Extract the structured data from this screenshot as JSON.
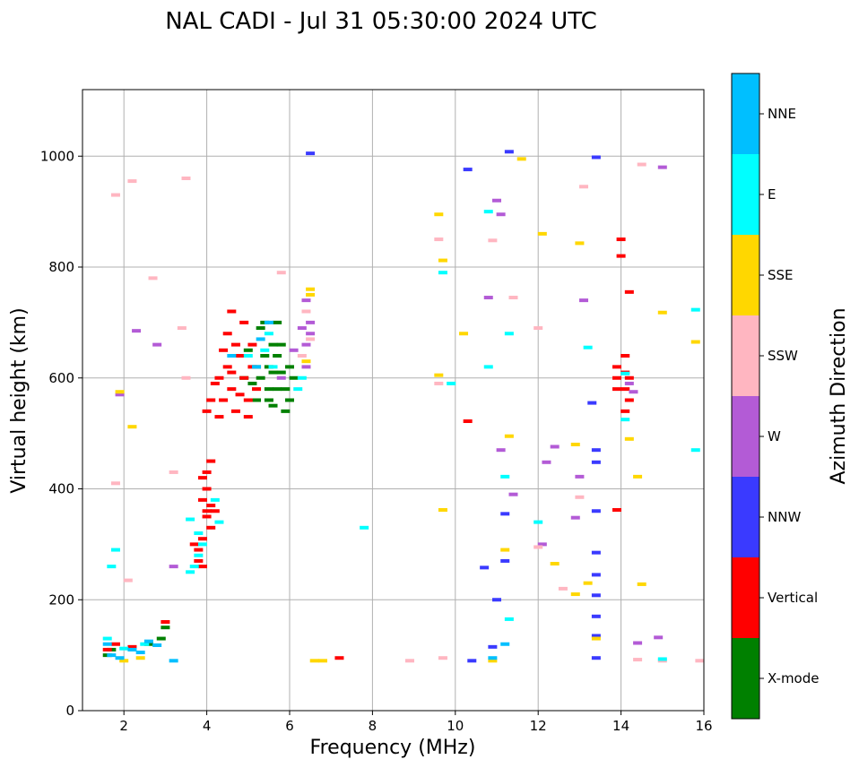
{
  "chart_data": {
    "type": "scatter",
    "title": "NAL CADI - Jul 31 05:30:00 2024 UTC",
    "xlabel": "Frequency (MHz)",
    "ylabel": "Virtual height (km)",
    "xlim": [
      1,
      16
    ],
    "ylim": [
      0,
      1120
    ],
    "xticks": [
      2,
      4,
      6,
      8,
      10,
      12,
      14,
      16
    ],
    "yticks": [
      0,
      200,
      400,
      600,
      800,
      1000
    ],
    "grid": true,
    "colorbar": {
      "label": "Azimuth Direction",
      "categories": [
        "X-mode",
        "Vertical",
        "NNW",
        "W",
        "SSW",
        "SSE",
        "E",
        "NNE"
      ],
      "colors": [
        "#008000",
        "#ff0000",
        "#3a3aff",
        "#b35bd6",
        "#ffb6c1",
        "#ffd700",
        "#00ffff",
        "#00bfff"
      ]
    },
    "series": [
      {
        "name": "X-mode",
        "points": [
          [
            5.4,
            640
          ],
          [
            5.5,
            620
          ],
          [
            5.3,
            600
          ],
          [
            5.6,
            660
          ],
          [
            5.7,
            700
          ],
          [
            5.2,
            560
          ],
          [
            5.8,
            610
          ],
          [
            5.9,
            580
          ],
          [
            6.0,
            620
          ],
          [
            5.1,
            590
          ],
          [
            5.5,
            580
          ],
          [
            5.0,
            650
          ],
          [
            5.4,
            700
          ],
          [
            5.6,
            550
          ],
          [
            5.9,
            540
          ],
          [
            6.1,
            600
          ],
          [
            5.7,
            640
          ],
          [
            5.3,
            690
          ],
          [
            5.2,
            620
          ],
          [
            5.8,
            660
          ],
          [
            6.0,
            560
          ],
          [
            5.6,
            610
          ],
          [
            4.9,
            600
          ],
          [
            5.7,
            580
          ],
          [
            5.5,
            560
          ],
          [
            1.6,
            100
          ],
          [
            1.7,
            110
          ],
          [
            2.9,
            130
          ],
          [
            2.6,
            120
          ],
          [
            3.0,
            150
          ]
        ]
      },
      {
        "name": "Vertical",
        "points": [
          [
            4.3,
            600
          ],
          [
            4.4,
            560
          ],
          [
            4.5,
            620
          ],
          [
            4.6,
            580
          ],
          [
            4.7,
            540
          ],
          [
            4.8,
            640
          ],
          [
            4.9,
            600
          ],
          [
            5.0,
            560
          ],
          [
            5.1,
            620
          ],
          [
            4.2,
            590
          ],
          [
            4.4,
            650
          ],
          [
            4.6,
            610
          ],
          [
            4.8,
            570
          ],
          [
            5.0,
            530
          ],
          [
            5.2,
            580
          ],
          [
            4.3,
            530
          ],
          [
            4.5,
            680
          ],
          [
            4.7,
            660
          ],
          [
            4.9,
            700
          ],
          [
            5.1,
            660
          ],
          [
            4.0,
            540
          ],
          [
            4.1,
            560
          ],
          [
            4.6,
            720
          ],
          [
            3.8,
            290
          ],
          [
            3.9,
            310
          ],
          [
            4.0,
            350
          ],
          [
            4.0,
            400
          ],
          [
            3.9,
            380
          ],
          [
            4.1,
            330
          ],
          [
            4.0,
            430
          ],
          [
            4.1,
            450
          ],
          [
            3.8,
            270
          ],
          [
            3.9,
            260
          ],
          [
            4.2,
            360
          ],
          [
            3.9,
            420
          ],
          [
            4.0,
            360
          ],
          [
            3.7,
            300
          ],
          [
            4.1,
            370
          ],
          [
            14.1,
            640
          ],
          [
            14.1,
            610
          ],
          [
            14.2,
            600
          ],
          [
            14.1,
            580
          ],
          [
            14.2,
            560
          ],
          [
            14.1,
            540
          ],
          [
            13.9,
            620
          ],
          [
            13.9,
            600
          ],
          [
            13.9,
            580
          ],
          [
            14.0,
            850
          ],
          [
            14.0,
            820
          ],
          [
            14.2,
            755
          ],
          [
            13.9,
            362
          ],
          [
            1.6,
            110
          ],
          [
            1.8,
            120
          ],
          [
            2.2,
            115
          ],
          [
            3.0,
            160
          ],
          [
            10.3,
            522
          ],
          [
            7.2,
            95
          ]
        ]
      },
      {
        "name": "NNW",
        "points": [
          [
            13.4,
            998
          ],
          [
            13.4,
            448
          ],
          [
            13.3,
            555
          ],
          [
            13.4,
            470
          ],
          [
            13.4,
            360
          ],
          [
            13.4,
            285
          ],
          [
            13.4,
            245
          ],
          [
            13.4,
            208
          ],
          [
            13.4,
            170
          ],
          [
            13.4,
            135
          ],
          [
            13.4,
            95
          ],
          [
            11.2,
            270
          ],
          [
            11.2,
            355
          ],
          [
            10.7,
            258
          ],
          [
            10.4,
            90
          ],
          [
            11.3,
            1008
          ],
          [
            10.3,
            976
          ],
          [
            6.5,
            1005
          ],
          [
            10.9,
            115
          ],
          [
            11.0,
            200
          ]
        ]
      },
      {
        "name": "W",
        "points": [
          [
            6.4,
            620
          ],
          [
            6.4,
            660
          ],
          [
            6.5,
            700
          ],
          [
            6.4,
            740
          ],
          [
            6.3,
            690
          ],
          [
            6.5,
            680
          ],
          [
            5.8,
            600
          ],
          [
            6.1,
            650
          ],
          [
            10.8,
            745
          ],
          [
            11.0,
            920
          ],
          [
            11.1,
            895
          ],
          [
            11.1,
            470
          ],
          [
            11.4,
            390
          ],
          [
            12.2,
            448
          ],
          [
            12.4,
            476
          ],
          [
            13.0,
            422
          ],
          [
            12.9,
            348
          ],
          [
            13.1,
            740
          ],
          [
            14.3,
            575
          ],
          [
            14.2,
            590
          ],
          [
            14.4,
            122
          ],
          [
            14.9,
            132
          ],
          [
            15.0,
            980
          ],
          [
            12.1,
            300
          ],
          [
            1.9,
            570
          ],
          [
            2.3,
            685
          ],
          [
            3.2,
            260
          ],
          [
            2.8,
            660
          ]
        ]
      },
      {
        "name": "SSW",
        "points": [
          [
            6.4,
            720
          ],
          [
            6.3,
            640
          ],
          [
            6.5,
            670
          ],
          [
            5.8,
            790
          ],
          [
            9.6,
            850
          ],
          [
            9.6,
            590
          ],
          [
            13.1,
            945
          ],
          [
            14.5,
            985
          ],
          [
            12.0,
            690
          ],
          [
            12.0,
            295
          ],
          [
            12.6,
            220
          ],
          [
            13.0,
            385
          ],
          [
            14.4,
            92
          ],
          [
            15.0,
            90
          ],
          [
            15.9,
            90
          ],
          [
            8.9,
            90
          ],
          [
            3.2,
            430
          ],
          [
            3.5,
            600
          ],
          [
            1.8,
            410
          ],
          [
            2.1,
            235
          ],
          [
            2.7,
            780
          ],
          [
            3.4,
            690
          ],
          [
            3.5,
            960
          ],
          [
            1.8,
            930
          ],
          [
            2.2,
            955
          ],
          [
            9.7,
            95
          ],
          [
            10.9,
            848
          ],
          [
            11.4,
            745
          ]
        ]
      },
      {
        "name": "SSE",
        "points": [
          [
            6.5,
            750
          ],
          [
            6.5,
            760
          ],
          [
            6.4,
            630
          ],
          [
            9.6,
            605
          ],
          [
            9.6,
            895
          ],
          [
            9.7,
            812
          ],
          [
            9.7,
            362
          ],
          [
            10.2,
            680
          ],
          [
            10.9,
            90
          ],
          [
            11.3,
            495
          ],
          [
            11.2,
            290
          ],
          [
            12.4,
            265
          ],
          [
            12.9,
            480
          ],
          [
            12.9,
            210
          ],
          [
            13.0,
            843
          ],
          [
            13.2,
            230
          ],
          [
            13.4,
            130
          ],
          [
            14.2,
            490
          ],
          [
            14.4,
            422
          ],
          [
            14.5,
            228
          ],
          [
            15.0,
            718
          ],
          [
            15.8,
            665
          ],
          [
            12.1,
            860
          ],
          [
            11.6,
            995
          ],
          [
            6.6,
            90
          ],
          [
            6.8,
            90
          ],
          [
            1.9,
            575
          ],
          [
            2.2,
            512
          ],
          [
            2.0,
            90
          ],
          [
            2.4,
            95
          ]
        ]
      },
      {
        "name": "E",
        "points": [
          [
            3.6,
            250
          ],
          [
            3.7,
            260
          ],
          [
            3.8,
            280
          ],
          [
            3.9,
            300
          ],
          [
            3.6,
            345
          ],
          [
            3.8,
            320
          ],
          [
            4.2,
            380
          ],
          [
            4.3,
            340
          ],
          [
            5.5,
            680
          ],
          [
            5.4,
            650
          ],
          [
            6.2,
            580
          ],
          [
            6.3,
            600
          ],
          [
            5.6,
            620
          ],
          [
            5.0,
            640
          ],
          [
            9.7,
            790
          ],
          [
            9.9,
            590
          ],
          [
            10.8,
            900
          ],
          [
            10.8,
            620
          ],
          [
            11.3,
            680
          ],
          [
            11.2,
            422
          ],
          [
            11.3,
            165
          ],
          [
            12.0,
            340
          ],
          [
            13.2,
            655
          ],
          [
            14.1,
            525
          ],
          [
            14.1,
            608
          ],
          [
            15.0,
            93
          ],
          [
            15.8,
            723
          ],
          [
            15.8,
            470
          ],
          [
            7.8,
            330
          ],
          [
            1.8,
            290
          ],
          [
            1.7,
            260
          ],
          [
            1.6,
            130
          ],
          [
            2.0,
            112
          ],
          [
            2.5,
            120
          ]
        ]
      },
      {
        "name": "NNE",
        "points": [
          [
            1.6,
            120
          ],
          [
            1.7,
            100
          ],
          [
            1.9,
            95
          ],
          [
            2.2,
            110
          ],
          [
            2.4,
            105
          ],
          [
            2.6,
            125
          ],
          [
            2.8,
            118
          ],
          [
            3.2,
            90
          ],
          [
            5.3,
            670
          ],
          [
            5.5,
            700
          ],
          [
            5.2,
            620
          ],
          [
            4.6,
            640
          ],
          [
            10.9,
            95
          ],
          [
            11.2,
            120
          ]
        ]
      }
    ]
  }
}
